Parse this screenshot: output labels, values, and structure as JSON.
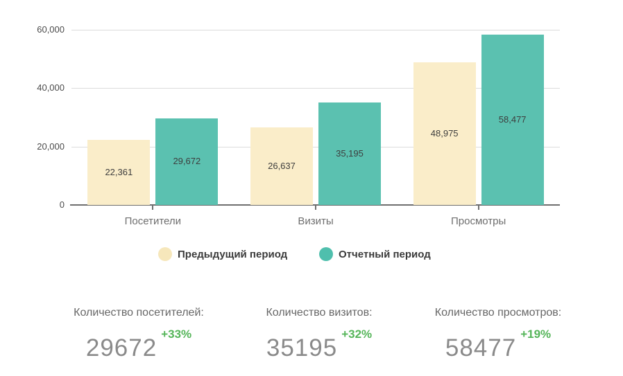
{
  "accent_colors": {
    "previous_period": "#FAEDC9",
    "previous_period_legend": "#F6E7BB",
    "current_period": "#5BC1B0",
    "delta_green": "#55B559",
    "gridline": "#dcdcdc",
    "axis": "#6e6e6e"
  },
  "chart_data": {
    "type": "bar",
    "title": "",
    "xlabel": "",
    "ylabel": "",
    "categories": [
      "Посетители",
      "Визиты",
      "Просмотры"
    ],
    "series": [
      {
        "name": "Предыдущий период",
        "color": "#FAEDC9",
        "legend_color": "#F6E7BB",
        "values": [
          22361,
          26637,
          48975
        ],
        "display_labels": [
          "22,361",
          "26,637",
          "48,975"
        ]
      },
      {
        "name": "Отчетный период",
        "color": "#5BC1B0",
        "legend_color": "#4FBFAD",
        "values": [
          29672,
          35195,
          58477
        ],
        "display_labels": [
          "29,672",
          "35,195",
          "58,477"
        ]
      }
    ],
    "y_axis": {
      "ticks": [
        {
          "value": 0,
          "label": "0"
        },
        {
          "value": 20000,
          "label": "20,000"
        },
        {
          "value": 40000,
          "label": "40,000"
        },
        {
          "value": 60000,
          "label": "60,000"
        }
      ],
      "ylim": [
        0,
        60000
      ]
    },
    "grid": true,
    "legend_position": "bottom",
    "value_labels": "inside-center"
  },
  "stats": [
    {
      "label": "Количество посетителей:",
      "value": "29672",
      "delta": "+33%"
    },
    {
      "label": "Количество визитов:",
      "value": "35195",
      "delta": "+32%"
    },
    {
      "label": "Количество просмотров:",
      "value": "58477",
      "delta": "+19%"
    }
  ]
}
